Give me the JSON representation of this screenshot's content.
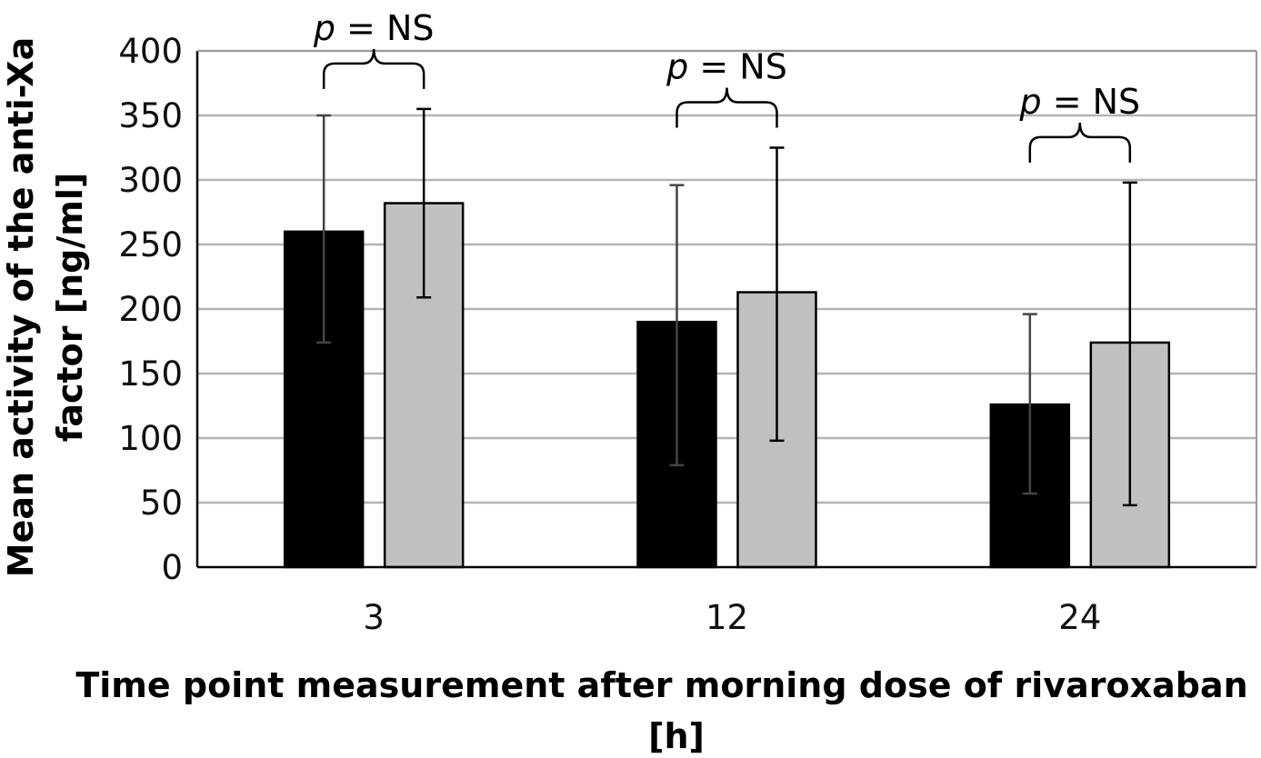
{
  "chart_data": {
    "type": "bar",
    "title": "",
    "xlabel_lines": [
      "Time point measurement after morning dose of rivaroxaban",
      "[h]"
    ],
    "ylabel_lines": [
      "Mean activity of the anti-Xa",
      "factor [ng/ml]"
    ],
    "categories": [
      "3",
      "12",
      "24"
    ],
    "ylim": [
      0,
      400
    ],
    "yticks": [
      0,
      50,
      100,
      150,
      200,
      250,
      300,
      350,
      400
    ],
    "grid": true,
    "legend": "none",
    "series": [
      {
        "color": "#000000",
        "values": [
          260,
          190,
          126
        ],
        "error_low": [
          174,
          79,
          57
        ],
        "error_high": [
          350,
          296,
          196
        ]
      },
      {
        "color": "#bfc0c2",
        "values": [
          282,
          213,
          174
        ],
        "error_low": [
          209,
          98,
          48
        ],
        "error_high": [
          355,
          325,
          298
        ]
      }
    ],
    "annotations": [
      {
        "category": "3",
        "p_symbol": "p",
        "p_rest": " = NS"
      },
      {
        "category": "12",
        "p_symbol": "p",
        "p_rest": " = NS"
      },
      {
        "category": "24",
        "p_symbol": "p",
        "p_rest": " = NS"
      }
    ]
  }
}
